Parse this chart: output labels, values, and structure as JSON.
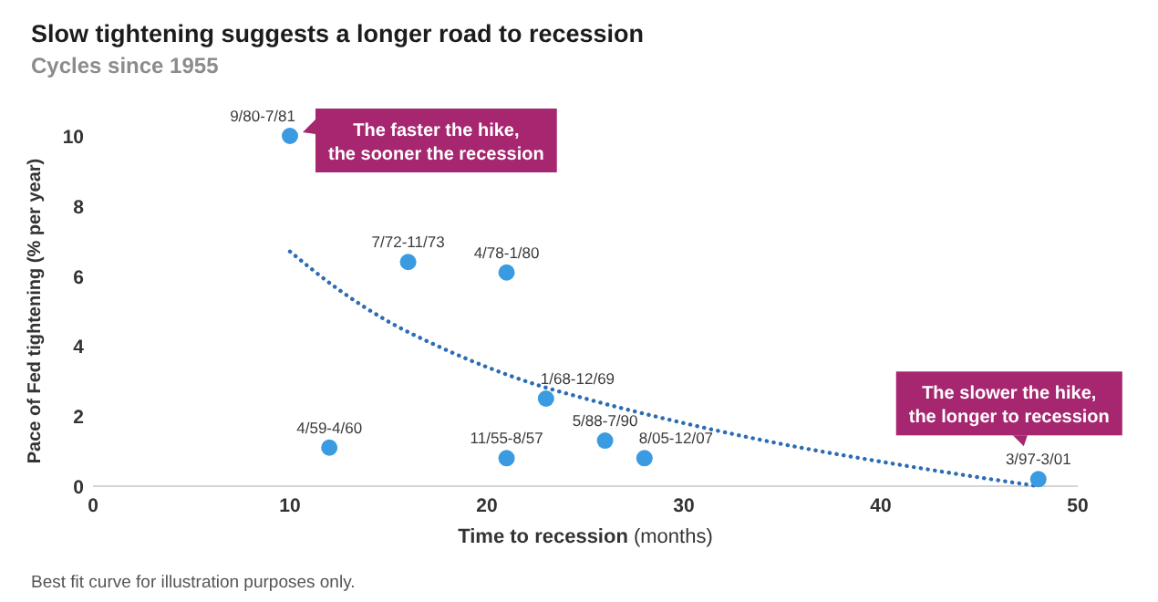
{
  "chart_data": {
    "type": "scatter",
    "title": "Slow tightening suggests a longer road to recession",
    "subtitle": "Cycles since 1955",
    "xlabel": "Time to recession (months)",
    "ylabel": "Pace of Fed tightening (% per year)",
    "xlim": [
      0,
      50
    ],
    "ylim": [
      0,
      10
    ],
    "xticks": [
      0,
      10,
      20,
      30,
      40,
      50
    ],
    "yticks": [
      0,
      2,
      4,
      6,
      8,
      10
    ],
    "series": [
      {
        "type": "line",
        "color": "#2b6cb3",
        "line_style": "dotted",
        "x": [
          10,
          12.5,
          15,
          17.5,
          20,
          22.5,
          25,
          30,
          35,
          40,
          45,
          48
        ],
        "values": [
          6.7,
          5.6,
          4.7,
          4.0,
          3.4,
          2.9,
          2.5,
          1.8,
          1.2,
          0.7,
          0.25,
          0
        ]
      },
      {
        "color": "#3a9be0",
        "marker": "circle",
        "x": [
          10,
          12,
          16,
          21,
          21,
          23,
          26,
          28,
          48
        ],
        "values": [
          10,
          1.1,
          6.4,
          6.1,
          0.8,
          2.5,
          1.3,
          0.8,
          0.2
        ],
        "value_labels": [
          "9/80-7/81",
          "4/59-4/60",
          "7/72-11/73",
          "4/78-1/80",
          "11/55-8/57",
          "1/68-12/69",
          "5/88-7/90",
          "8/05-12/07",
          "3/97-3/01"
        ]
      }
    ],
    "annotations": [
      {
        "text": "The faster the hike,\nthe sooner the recession",
        "x": 10,
        "y": 10
      },
      {
        "text": "The slower the hike,\nthe longer to recession",
        "x": 48,
        "y": 0.2
      },
      "Best fit curve for illustration purposes only."
    ]
  }
}
